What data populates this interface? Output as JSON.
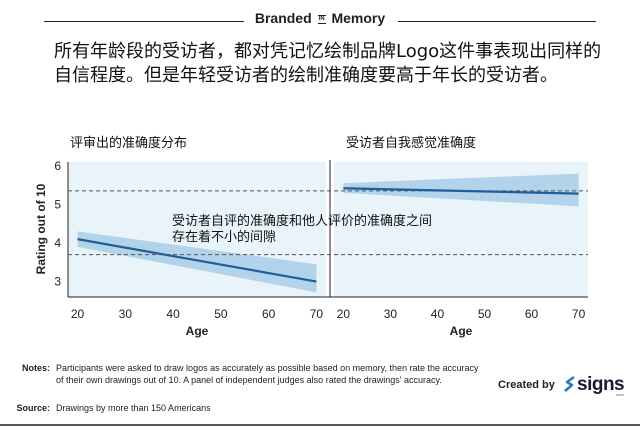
{
  "header": {
    "title_a": "Branded",
    "title_in": "IN",
    "title_b": "Memory"
  },
  "headline": "所有年龄段的受访者，都对凭记忆绘制品牌Logo这件事表现出同样的自信程度。但是年轻受访者的绘制准确度要高于年长的受访者。",
  "colors": {
    "line": "#1f5f99",
    "band": "#a9cde6",
    "panel_bg": "#e9f3fa",
    "dashed": "#555555"
  },
  "annotation": {
    "line1": "受访者自评的准确度和他人评价的准确度之间",
    "line2": "存在着不小的间隙"
  },
  "chart_data": [
    {
      "type": "line",
      "title": "评审出的准确度分布",
      "xlabel": "Age",
      "ylabel": "Rating out of 10",
      "xlim": [
        18,
        72
      ],
      "ylim": [
        2.6,
        6.1
      ],
      "xticks": [
        20,
        30,
        40,
        50,
        60,
        70
      ],
      "yticks": [
        3,
        4,
        5,
        6
      ],
      "series": [
        {
          "x": [
            20,
            70
          ],
          "y": [
            4.1,
            3.0
          ],
          "band_lower": [
            3.9,
            2.72
          ],
          "band_upper": [
            4.3,
            3.45
          ]
        }
      ],
      "reference_line_y": 3.7
    },
    {
      "type": "line",
      "title": "受访者自我感觉准确度",
      "xlabel": "Age",
      "ylabel": "",
      "xlim": [
        18,
        72
      ],
      "ylim": [
        2.6,
        6.1
      ],
      "xticks": [
        20,
        30,
        40,
        50,
        60,
        70
      ],
      "yticks": [
        3,
        4,
        5,
        6
      ],
      "series": [
        {
          "x": [
            20,
            70
          ],
          "y": [
            5.42,
            5.28
          ],
          "band_lower": [
            5.3,
            4.95
          ],
          "band_upper": [
            5.55,
            5.8
          ]
        }
      ],
      "reference_line_y": 5.35
    }
  ],
  "notes": {
    "label": "Notes:",
    "text": "Participants were asked to draw logos as accurately as possible based on memory, then rate the accuracy of their own drawings out of 10. A panel of independent judges also rated the drawings' accuracy."
  },
  "source": {
    "label": "Source:",
    "text": "Drawings by more than 150 Americans"
  },
  "credit": {
    "created_by": "Created by",
    "logo": "signs",
    "logo_sub": ".com"
  }
}
